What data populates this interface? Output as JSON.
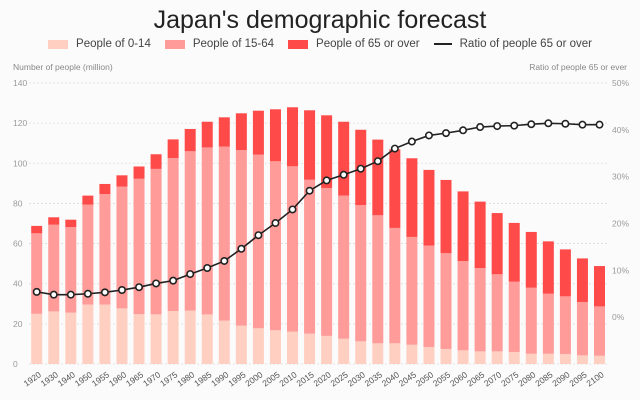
{
  "chart_data": {
    "type": "bar",
    "stacked": true,
    "title": "Japan's demographic forecast",
    "ylabel_left": "Number of people (million)",
    "ylabel_right": "Ratio of people 65 or ever",
    "ylim_left": [
      0,
      140
    ],
    "yticks_left": [
      0,
      20,
      40,
      60,
      80,
      100,
      120,
      140
    ],
    "ylim_right": [
      -10,
      50
    ],
    "yticks_right": [
      "0%",
      "10%",
      "20%",
      "30%",
      "40%",
      "50%"
    ],
    "yticks_right_values": [
      0,
      10,
      20,
      30,
      40,
      50
    ],
    "grid": true,
    "legend_position": "top-center",
    "categories": [
      "1920",
      "1930",
      "1940",
      "1950",
      "1955",
      "1960",
      "1965",
      "1970",
      "1975",
      "1980",
      "1985",
      "1990",
      "1995",
      "2000",
      "2005",
      "2010",
      "2015",
      "2020",
      "2025",
      "2030",
      "2035",
      "2040",
      "2045",
      "2050",
      "2055",
      "2060",
      "2065",
      "2070",
      "2075",
      "2080",
      "2085",
      "2090",
      "2095",
      "2100"
    ],
    "series": [
      {
        "name": "People of 0-14",
        "color": "#ffd0c2",
        "axis": "left",
        "values": [
          25.0,
          26.2,
          25.6,
          29.6,
          29.6,
          27.7,
          24.8,
          24.7,
          26.4,
          26.6,
          24.7,
          21.6,
          19.1,
          17.8,
          16.8,
          16.1,
          15.1,
          14.0,
          12.6,
          11.3,
          10.3,
          10.3,
          9.6,
          8.5,
          7.5,
          6.8,
          6.3,
          6.3,
          6.0,
          5.1,
          5.1,
          5.0,
          4.3,
          4.1
        ]
      },
      {
        "name": "People of 15-64",
        "color": "#ff9b99",
        "axis": "left",
        "values": [
          40.1,
          43.2,
          42.6,
          49.8,
          55.1,
          60.7,
          67.5,
          72.5,
          76.2,
          79.4,
          83.2,
          86.7,
          87.5,
          86.5,
          84.2,
          82.4,
          76.7,
          73.7,
          71.3,
          67.9,
          63.8,
          57.5,
          53.7,
          50.5,
          47.7,
          44.5,
          41.5,
          38.4,
          35.0,
          32.9,
          29.9,
          28.7,
          26.6,
          24.6
        ]
      },
      {
        "name": "People of 65 or over",
        "color": "#ff4a4a",
        "axis": "left",
        "values": [
          3.7,
          3.7,
          3.7,
          4.5,
          5.0,
          5.6,
          6.1,
          7.3,
          9.3,
          11.1,
          12.8,
          14.6,
          18.3,
          21.9,
          25.9,
          29.4,
          34.6,
          36.2,
          36.8,
          37.5,
          37.7,
          39.2,
          39.2,
          37.7,
          36.5,
          34.7,
          33.1,
          30.5,
          29.3,
          27.8,
          26.1,
          23.4,
          21.7,
          20.1
        ]
      },
      {
        "name": "Ratio of people 65 or over",
        "color": "#222222",
        "axis": "right",
        "type": "line",
        "unit": "%",
        "values": [
          5.4,
          4.8,
          4.8,
          5.0,
          5.3,
          5.8,
          6.4,
          7.2,
          7.8,
          9.2,
          10.5,
          12.0,
          14.6,
          17.5,
          20.1,
          23.0,
          27.0,
          29.2,
          30.4,
          31.7,
          33.3,
          36.0,
          37.5,
          38.8,
          39.3,
          39.9,
          40.6,
          40.8,
          40.9,
          41.2,
          41.4,
          41.3,
          41.1,
          41.1
        ]
      }
    ]
  },
  "legend": [
    {
      "label": "People of 0-14",
      "color": "#ffd0c2",
      "kind": "box"
    },
    {
      "label": "People of 15-64",
      "color": "#ff9b99",
      "kind": "box"
    },
    {
      "label": "People of 65 or over",
      "color": "#ff4a4a",
      "kind": "box"
    },
    {
      "label": "Ratio of people 65 or over",
      "color": "#222222",
      "kind": "line"
    }
  ]
}
